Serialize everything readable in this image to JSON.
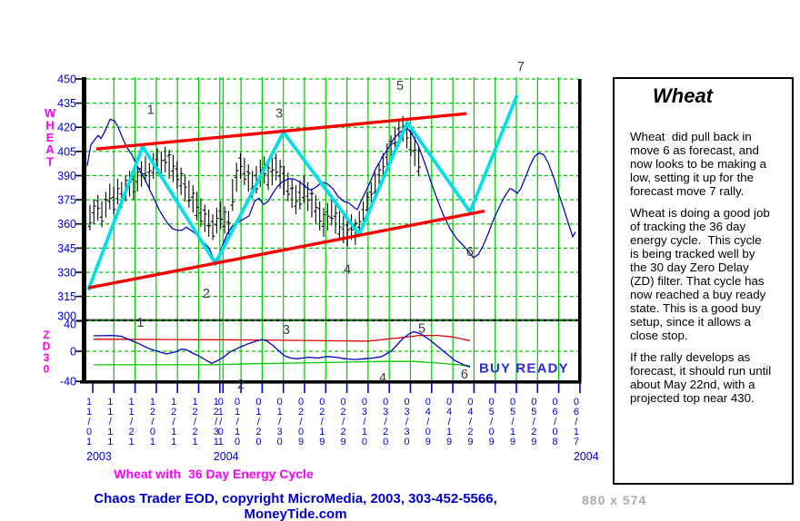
{
  "title": "Wheat with  36 Day Energy Cycle",
  "footer": {
    "copyright": "Chaos Trader EOD, copyright MicroMedia, 2003, 303-452-5566, MoneyTide.com",
    "dimensions": "880 x 574"
  },
  "panel": {
    "title": "Wheat",
    "paragraphs": [
      "Wheat  did pull back in\nmove 6 as forecast, and\nnow looks to be making a\nlow, setting it up for the\nforecast move 7 rally.",
      "Wheat is doing a good job\nof tracking the 36 day\nenergy cycle.  This cycle\nis being tracked well by\nthe 30 day Zero Delay\n(ZD) filter. That cycle has\nnow reached a buy ready\nstate. This is a good buy\nsetup, since it allows a\nclose stop.",
      "If the rally develops as\nforecast, it should run until\nabout May 22nd, with a\nprojected top near 430."
    ]
  },
  "colors": {
    "grid": "#00C800",
    "axis_text": "#0000D2",
    "axis_black": "#000000",
    "price_line": "#0000BE",
    "zigzag": "#00E0E6",
    "channel": "#F80000",
    "zd_line": "#0000BE",
    "zd_upper_band": "#E00000",
    "zd_lower_band": "#00C800",
    "wave_label": "#3C3C3C",
    "buy_ready": "#2B2BD8",
    "magenta": "#FF00FF",
    "copyright": "#0000CC",
    "dims_text": "#ABABAB"
  },
  "chart_data": {
    "type": "line",
    "title": "Wheat with 36 Day Energy Cycle",
    "x_axis": {
      "note": "each slot = 10 calendar days, Nov 2003 - Jun 2004",
      "tick_labels": [
        "11/01",
        "11/11",
        "11/21",
        "12/01",
        "12/11",
        "12/21",
        "12/31",
        "01/10",
        "01/20",
        "01/30",
        "02/09",
        "02/19",
        "02/29",
        "03/10",
        "03/20",
        "03/30",
        "04/09",
        "04/19",
        "04/29",
        "05/09",
        "05/19",
        "05/29",
        "06/08",
        "06/17"
      ],
      "overlap_label": {
        "text": "01/01",
        "index": 6
      },
      "years": [
        {
          "text": "2003",
          "slot": 0
        },
        {
          "text": "2004",
          "slot": 6
        },
        {
          "text": "2004",
          "slot": 23
        }
      ]
    },
    "price_panel": {
      "ylabel": "WHEAT",
      "ylim": [
        300,
        450
      ],
      "yticks": [
        450,
        435,
        420,
        405,
        390,
        375,
        360,
        345,
        330,
        315,
        300
      ],
      "grid": true,
      "ohlc_bars": {
        "x0_slot": -0.13,
        "dx_slot": 0.187,
        "high_low": [
          [
            372,
            356
          ],
          [
            375,
            360
          ],
          [
            378,
            362
          ],
          [
            374,
            358
          ],
          [
            380,
            364
          ],
          [
            385,
            369
          ],
          [
            383,
            366
          ],
          [
            388,
            372
          ],
          [
            386,
            370
          ],
          [
            390,
            374
          ],
          [
            393,
            377
          ],
          [
            391,
            375
          ],
          [
            396,
            380
          ],
          [
            399,
            383
          ],
          [
            402,
            386
          ],
          [
            398,
            382
          ],
          [
            404,
            388
          ],
          [
            407,
            391
          ],
          [
            405,
            389
          ],
          [
            408,
            392
          ],
          [
            406,
            388
          ],
          [
            403,
            386
          ],
          [
            399,
            382
          ],
          [
            395,
            378
          ],
          [
            391,
            374
          ],
          [
            387,
            370
          ],
          [
            384,
            367
          ],
          [
            380,
            362
          ],
          [
            376,
            358
          ],
          [
            372,
            355
          ],
          [
            369,
            352
          ],
          [
            366,
            350
          ],
          [
            370,
            354
          ],
          [
            374,
            357
          ],
          [
            371,
            354
          ],
          [
            368,
            352
          ],
          [
            388,
            368
          ],
          [
            398,
            380
          ],
          [
            404,
            388
          ],
          [
            401,
            384
          ],
          [
            397,
            380
          ],
          [
            393,
            376
          ],
          [
            396,
            379
          ],
          [
            400,
            383
          ],
          [
            402,
            385
          ],
          [
            398,
            381
          ],
          [
            401,
            384
          ],
          [
            404,
            387
          ],
          [
            400,
            382
          ],
          [
            396,
            378
          ],
          [
            392,
            374
          ],
          [
            388,
            370
          ],
          [
            384,
            366
          ],
          [
            387,
            369
          ],
          [
            390,
            373
          ],
          [
            386,
            368
          ],
          [
            382,
            364
          ],
          [
            378,
            360
          ],
          [
            374,
            356
          ],
          [
            370,
            352
          ],
          [
            373,
            356
          ],
          [
            376,
            359
          ],
          [
            372,
            354
          ],
          [
            368,
            350
          ],
          [
            365,
            348
          ],
          [
            362,
            346
          ],
          [
            366,
            350
          ],
          [
            363,
            347
          ],
          [
            368,
            352
          ],
          [
            374,
            358
          ],
          [
            380,
            364
          ],
          [
            386,
            370
          ],
          [
            392,
            376
          ],
          [
            398,
            382
          ],
          [
            404,
            388
          ],
          [
            410,
            394
          ],
          [
            415,
            399
          ],
          [
            420,
            404
          ],
          [
            424,
            408
          ],
          [
            427,
            411
          ],
          [
            425,
            407
          ],
          [
            420,
            402
          ],
          [
            414,
            396
          ],
          [
            408,
            390
          ]
        ]
      },
      "cycle_line": [
        [
          -0.26,
          396
        ],
        [
          -0.09,
          409
        ],
        [
          0.13,
          413
        ],
        [
          0.26,
          415
        ],
        [
          0.39,
          413
        ],
        [
          0.56,
          417
        ],
        [
          0.82,
          425
        ],
        [
          1.03,
          424
        ],
        [
          1.2,
          420
        ],
        [
          1.42,
          413
        ],
        [
          1.63,
          407
        ],
        [
          1.85,
          403
        ],
        [
          2.06,
          397
        ],
        [
          2.27,
          392
        ],
        [
          2.49,
          387
        ],
        [
          2.7,
          381
        ],
        [
          2.92,
          375
        ],
        [
          3.13,
          369
        ],
        [
          3.35,
          364
        ],
        [
          3.56,
          360
        ],
        [
          3.78,
          357
        ],
        [
          3.99,
          356
        ],
        [
          4.21,
          356
        ],
        [
          4.42,
          358
        ],
        [
          4.64,
          356
        ],
        [
          4.85,
          354
        ],
        [
          5.06,
          351
        ],
        [
          5.28,
          348
        ],
        [
          5.49,
          345
        ],
        [
          5.75,
          337
        ],
        [
          5.92,
          340
        ],
        [
          6.14,
          347
        ],
        [
          6.35,
          354
        ],
        [
          6.61,
          359
        ],
        [
          6.87,
          361
        ],
        [
          7.12,
          363
        ],
        [
          7.38,
          365
        ],
        [
          7.64,
          374
        ],
        [
          7.85,
          376
        ],
        [
          8.07,
          372
        ],
        [
          8.28,
          374
        ],
        [
          8.5,
          379
        ],
        [
          8.71,
          383
        ],
        [
          8.93,
          386
        ],
        [
          9.23,
          388
        ],
        [
          9.48,
          388
        ],
        [
          9.79,
          386
        ],
        [
          10.04,
          383
        ],
        [
          10.3,
          381
        ],
        [
          10.56,
          383
        ],
        [
          10.82,
          386
        ],
        [
          11.07,
          385
        ],
        [
          11.33,
          382
        ],
        [
          11.59,
          377
        ],
        [
          11.85,
          374
        ],
        [
          12.1,
          373
        ],
        [
          12.36,
          370
        ],
        [
          12.49,
          369
        ],
        [
          12.7,
          375
        ],
        [
          12.92,
          381
        ],
        [
          13.13,
          387
        ],
        [
          13.35,
          394
        ],
        [
          13.65,
          401
        ],
        [
          13.95,
          407
        ],
        [
          14.21,
          413
        ],
        [
          14.51,
          417
        ],
        [
          14.81,
          420
        ],
        [
          15.06,
          416
        ],
        [
          15.36,
          409
        ],
        [
          15.67,
          398
        ],
        [
          15.97,
          386
        ],
        [
          16.27,
          375
        ],
        [
          16.57,
          365
        ],
        [
          16.87,
          357
        ],
        [
          17.17,
          351
        ],
        [
          17.47,
          347
        ],
        [
          17.73,
          343
        ],
        [
          17.98,
          339
        ],
        [
          18.2,
          341
        ],
        [
          18.41,
          346
        ],
        [
          18.67,
          354
        ],
        [
          18.93,
          363
        ],
        [
          19.18,
          370
        ],
        [
          19.44,
          377
        ],
        [
          19.7,
          382
        ],
        [
          19.87,
          381
        ],
        [
          20.04,
          379
        ],
        [
          20.21,
          382
        ],
        [
          20.43,
          389
        ],
        [
          20.64,
          396
        ],
        [
          20.86,
          402
        ],
        [
          21.07,
          404
        ],
        [
          21.29,
          403
        ],
        [
          21.5,
          398
        ],
        [
          21.76,
          389
        ],
        [
          22.02,
          378
        ],
        [
          22.27,
          368
        ],
        [
          22.49,
          359
        ],
        [
          22.66,
          352
        ],
        [
          22.79,
          355
        ]
      ],
      "forecast_zigzag": [
        [
          -0.21,
          319
        ],
        [
          2.36,
          408
        ],
        [
          5.79,
          335.5
        ],
        [
          9.01,
          417
        ],
        [
          12.58,
          353.5
        ],
        [
          14.85,
          423
        ],
        [
          17.81,
          367.5
        ],
        [
          20.04,
          440
        ]
      ],
      "channel_upper": [
        [
          0.17,
          406.5
        ],
        [
          17.64,
          428.5
        ]
      ],
      "channel_lower": [
        [
          -0.21,
          320.3
        ],
        [
          18.5,
          368
        ]
      ],
      "wave_labels": [
        {
          "n": "1",
          "slot": 2.73,
          "price": 431
        },
        {
          "n": "2",
          "slot": 5.36,
          "price": 317
        },
        {
          "n": "3",
          "slot": 8.8,
          "price": 429
        },
        {
          "n": "4",
          "slot": 12.02,
          "price": 332
        },
        {
          "n": "5",
          "slot": 14.51,
          "price": 446
        },
        {
          "n": "6",
          "slot": 17.81,
          "price": 343
        },
        {
          "n": "7",
          "slot": 20.21,
          "price": 458
        }
      ]
    },
    "zd_panel": {
      "ylabel": "ZD30",
      "ylim": [
        -40,
        40
      ],
      "yticks": [
        40,
        0,
        -40
      ],
      "zd_line": [
        [
          0.04,
          20.5
        ],
        [
          0.9,
          21
        ],
        [
          1.33,
          20
        ],
        [
          1.76,
          15
        ],
        [
          2.19,
          10
        ],
        [
          2.62,
          4
        ],
        [
          3.05,
          0
        ],
        [
          3.48,
          -3.5
        ],
        [
          3.91,
          -1
        ],
        [
          4.21,
          3
        ],
        [
          4.42,
          2
        ],
        [
          4.76,
          -3
        ],
        [
          5.06,
          -7
        ],
        [
          5.36,
          -12
        ],
        [
          5.62,
          -16
        ],
        [
          5.92,
          -12
        ],
        [
          6.22,
          -7
        ],
        [
          6.48,
          -1
        ],
        [
          6.91,
          5
        ],
        [
          7.34,
          10
        ],
        [
          7.77,
          14
        ],
        [
          7.98,
          15.5
        ],
        [
          8.2,
          14
        ],
        [
          8.5,
          8
        ],
        [
          8.8,
          0
        ],
        [
          9.06,
          -6
        ],
        [
          9.36,
          -9
        ],
        [
          9.66,
          -10
        ],
        [
          9.87,
          -9
        ],
        [
          10.21,
          -8
        ],
        [
          10.64,
          -9
        ],
        [
          11.07,
          -7
        ],
        [
          11.5,
          -8
        ],
        [
          11.93,
          -10
        ],
        [
          12.36,
          -11
        ],
        [
          12.79,
          -10
        ],
        [
          13.22,
          -9
        ],
        [
          13.65,
          -7
        ],
        [
          14.08,
          0
        ],
        [
          14.38,
          9
        ],
        [
          14.64,
          17
        ],
        [
          14.94,
          23
        ],
        [
          15.15,
          26
        ],
        [
          15.49,
          23
        ],
        [
          15.92,
          15
        ],
        [
          16.35,
          5
        ],
        [
          16.78,
          -5
        ],
        [
          17.08,
          -12
        ],
        [
          17.51,
          -18
        ],
        [
          17.81,
          -21
        ]
      ],
      "upper_band": [
        [
          0.04,
          16
        ],
        [
          4.0,
          15.5
        ],
        [
          8.0,
          15
        ],
        [
          11.0,
          14
        ],
        [
          13.0,
          13.5
        ],
        [
          14.5,
          18
        ],
        [
          15.4,
          21
        ],
        [
          16.3,
          21
        ],
        [
          17.0,
          19
        ],
        [
          17.81,
          14
        ]
      ],
      "lower_band": [
        [
          0.04,
          -18
        ],
        [
          5.49,
          -18
        ],
        [
          7.64,
          -16.5
        ],
        [
          9.79,
          -15.5
        ],
        [
          11.93,
          -14.5
        ],
        [
          13.65,
          -13.5
        ],
        [
          15.15,
          -13.5
        ],
        [
          16.22,
          -15.5
        ],
        [
          17.08,
          -17.5
        ],
        [
          17.81,
          -19.5
        ]
      ],
      "wave_labels": [
        {
          "n": "1",
          "slot": 2.25,
          "zd": 38.5
        },
        {
          "n": "2",
          "slot": 7.0,
          "zd": -43.5
        },
        {
          "n": "3",
          "slot": 9.14,
          "zd": 29
        },
        {
          "n": "4",
          "slot": 13.69,
          "zd": -35
        },
        {
          "n": "5",
          "slot": 15.54,
          "zd": 31
        },
        {
          "n": "6",
          "slot": 17.55,
          "zd": -30
        }
      ],
      "buy_ready": {
        "text": "BUY READY",
        "slot": 18.24,
        "zd": -22
      }
    }
  }
}
